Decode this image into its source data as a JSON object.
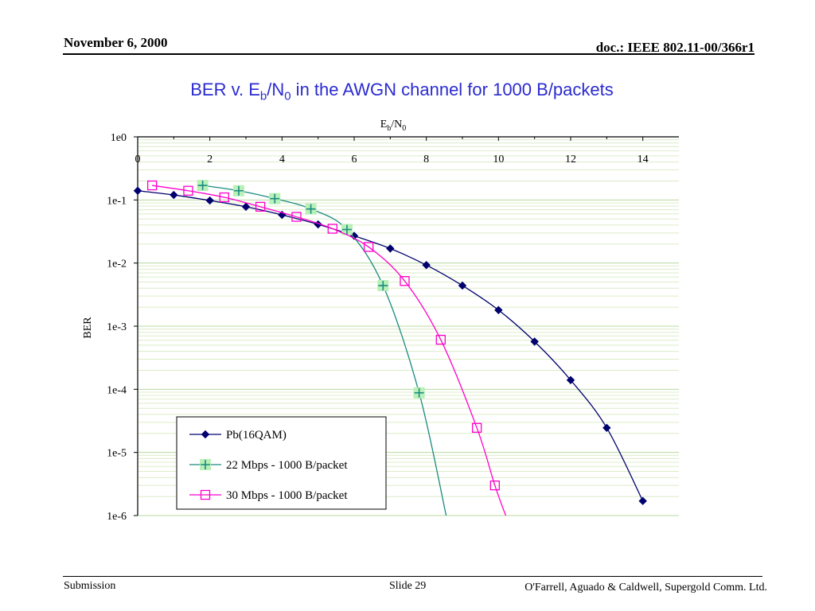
{
  "header": {
    "date": "November 6, 2000",
    "doc": "doc.: IEEE 802.11-00/366r1"
  },
  "title": {
    "prefix": "BER v. E",
    "sub1": "b",
    "mid": "/N",
    "sub2": "0",
    "suffix": " in the AWGN channel for 1000 B/packets"
  },
  "footer": {
    "left": "Submission",
    "center": "Slide 29",
    "right": "O'Farrell, Aguado & Caldwell, Supergold Comm. Ltd."
  },
  "colors": {
    "series1": "#00006e",
    "series2": "#1a8a80",
    "series2_marker_bg": "#b8f0b8",
    "series3": "#ff00cc",
    "grid_major": "#b8d8a0",
    "grid_minor": "#dcecc8"
  },
  "chart_data": {
    "type": "line",
    "xlabel": {
      "main": "E",
      "sub1": "b",
      "mid": "/N",
      "sub2": "0"
    },
    "ylabel": "BER",
    "xlim": [
      0,
      15
    ],
    "ylim": [
      1e-06,
      1
    ],
    "y_scale": "log",
    "x_ticks": [
      0,
      2,
      4,
      6,
      8,
      10,
      12,
      14
    ],
    "y_tick_labels": [
      "1e0",
      "1e-1",
      "1e-2",
      "1e-3",
      "1e-4",
      "1e-5",
      "1e-6"
    ],
    "grid": true,
    "legend_position": "bottom-left",
    "series": [
      {
        "name": "Pb(16QAM)",
        "marker": "diamond",
        "x": [
          0,
          1,
          2,
          3,
          4,
          5,
          6,
          7,
          8,
          9,
          10,
          11,
          12,
          13,
          14
        ],
        "y": [
          0.14,
          0.12,
          0.098,
          0.078,
          0.058,
          0.041,
          0.027,
          0.017,
          0.0093,
          0.0044,
          0.0018,
          0.00057,
          0.00014,
          2.45e-05,
          1.7e-06
        ]
      },
      {
        "name": "22 Mbps - 1000 B/packet",
        "marker": "plus",
        "x": [
          1.8,
          2.8,
          3.8,
          4.8,
          5.8,
          6.8,
          7.8
        ],
        "y": [
          0.17,
          0.14,
          0.105,
          0.072,
          0.034,
          0.0044,
          8.8e-05
        ],
        "curve_end": [
          8.55,
          1e-06
        ]
      },
      {
        "name": "30 Mbps - 1000 B/packet",
        "marker": "square",
        "x": [
          0.4,
          1.4,
          2.4,
          3.4,
          4.4,
          5.4,
          6.4,
          7.4,
          8.4,
          9.4,
          9.9
        ],
        "y": [
          0.17,
          0.14,
          0.11,
          0.078,
          0.054,
          0.035,
          0.018,
          0.0052,
          0.00061,
          2.45e-05,
          3e-06
        ],
        "curve_end": [
          10.2,
          1e-06
        ]
      }
    ]
  }
}
